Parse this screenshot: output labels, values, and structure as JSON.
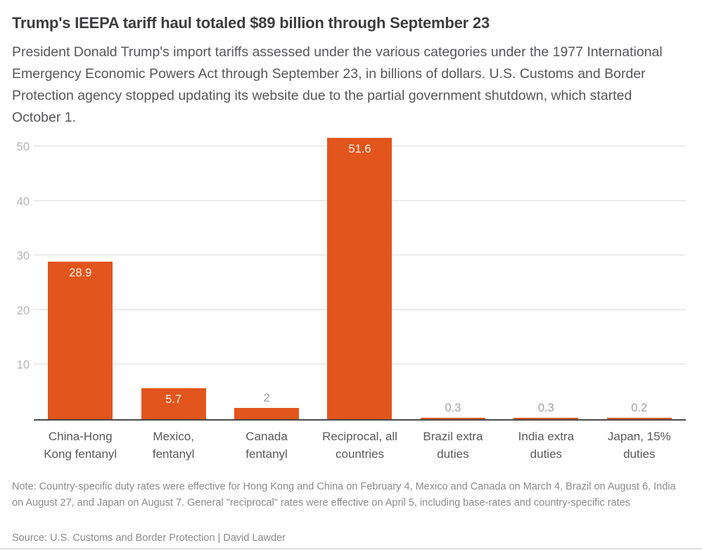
{
  "header": {
    "title": "Trump's IEEPA tariff haul totaled $89 billion through September 23",
    "subtitle": "President Donald Trump's import tariffs assessed under the various categories under the 1977 International Emergency Economic Powers Act through September 23, in billions of dollars. U.S. Customs and Border Protection agency stopped updating its website due to the partial government shutdown, which started October 1."
  },
  "chart_data": {
    "type": "bar",
    "title": "Trump's IEEPA tariff haul totaled $89 billion through September 23",
    "categories": [
      "China-Hong Kong fentanyl",
      "Mexico, fentanyl",
      "Canada fentanyl",
      "Reciprocal, all countries",
      "Brazil extra duties",
      "India extra duties",
      "Japan, 15% duties"
    ],
    "category_lines": [
      [
        "China-Hong",
        "Kong fentanyl"
      ],
      [
        "Mexico,",
        "fentanyl"
      ],
      [
        "Canada",
        "fentanyl"
      ],
      [
        "Reciprocal, all",
        "countries"
      ],
      [
        "Brazil extra",
        "duties"
      ],
      [
        "India extra",
        "duties"
      ],
      [
        "Japan, 15%",
        "duties"
      ]
    ],
    "values": [
      28.9,
      5.7,
      2,
      51.6,
      0.3,
      0.3,
      0.2
    ],
    "value_labels": [
      "28.9",
      "5.7",
      "2",
      "51.6",
      "0.3",
      "0.3",
      "0.2"
    ],
    "xlabel": "",
    "ylabel": "",
    "yticks": [
      10,
      20,
      30,
      40,
      50
    ],
    "ylim": [
      0,
      52.5
    ],
    "grid": "horizontal",
    "legend": "none",
    "bar_color": "#e2551c",
    "gridline_color": "#dcdcdc",
    "baseline_color": "#4a4a4a",
    "label_inside_color": "#fdf3ee",
    "label_outside_color": "#a3a3a3",
    "axis_label_color": "#b4b4b4"
  },
  "footer": {
    "note": "Note: Country-specific duty rates were effective for Hong Kong and China on February 4, Mexico and Canada on March 4, Brazil on August 6, India on August 27, and Japan on August 7. General \"reciprocal\" rates were effective on April 5, including base-rates and country-specific rates",
    "source": "Source: U.S. Customs and Border Protection | David Lawder"
  }
}
